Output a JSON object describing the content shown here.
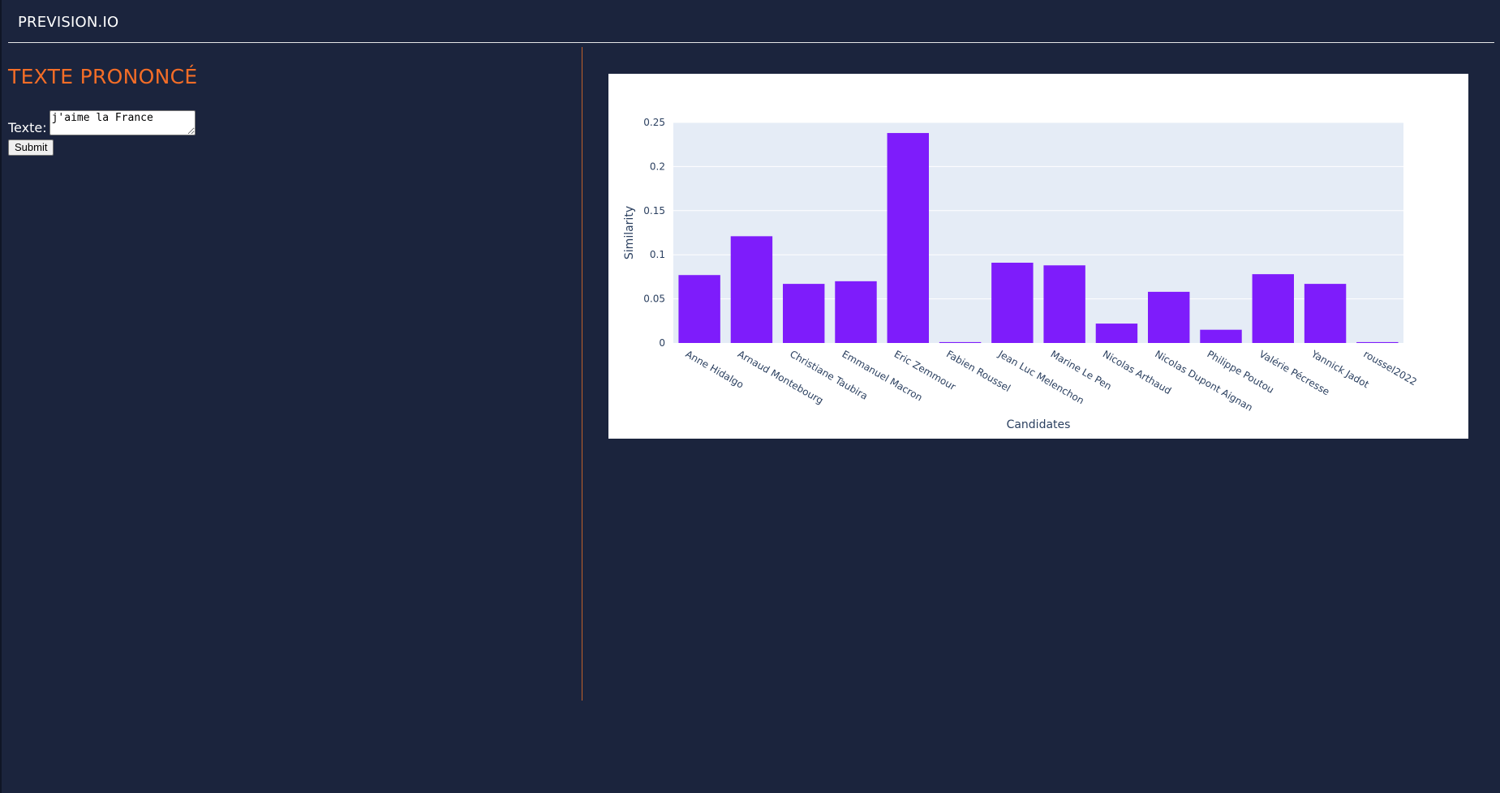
{
  "header": {
    "brand": "PREVISION.IO"
  },
  "left_panel": {
    "title": "TEXTE PRONONCÉ",
    "form": {
      "label": "Texte:",
      "textarea_value": "j'aime la France",
      "submit_label": "Submit"
    }
  },
  "colors": {
    "background": "#1b243d",
    "accent": "#f46d27",
    "bar": "#7e1cfb",
    "plot_background": "#e5ecf6"
  },
  "chart_data": {
    "type": "bar",
    "title": "",
    "xlabel": "Candidates",
    "ylabel": "Similarity",
    "ylim": [
      0,
      0.25
    ],
    "yticks": [
      0,
      0.05,
      0.1,
      0.15,
      0.2,
      0.25
    ],
    "ytick_labels": [
      "0",
      "0.05",
      "0.1",
      "0.15",
      "0.2",
      "0.25"
    ],
    "grid": true,
    "categories": [
      "Anne Hidalgo",
      "Arnaud Montebourg",
      "Christiane Taubira",
      "Emmanuel Macron",
      "Eric Zemmour",
      "Fabien Roussel",
      "Jean Luc Melenchon",
      "Marine Le Pen",
      "Nicolas Arthaud",
      "Nicolas Dupont Aignan",
      "Philippe Poutou",
      "Valérie Pécresse",
      "Yannick Jadot",
      "roussel2022"
    ],
    "values": [
      0.077,
      0.121,
      0.067,
      0.07,
      0.238,
      0.001,
      0.091,
      0.088,
      0.022,
      0.058,
      0.015,
      0.078,
      0.067,
      0.001
    ]
  }
}
